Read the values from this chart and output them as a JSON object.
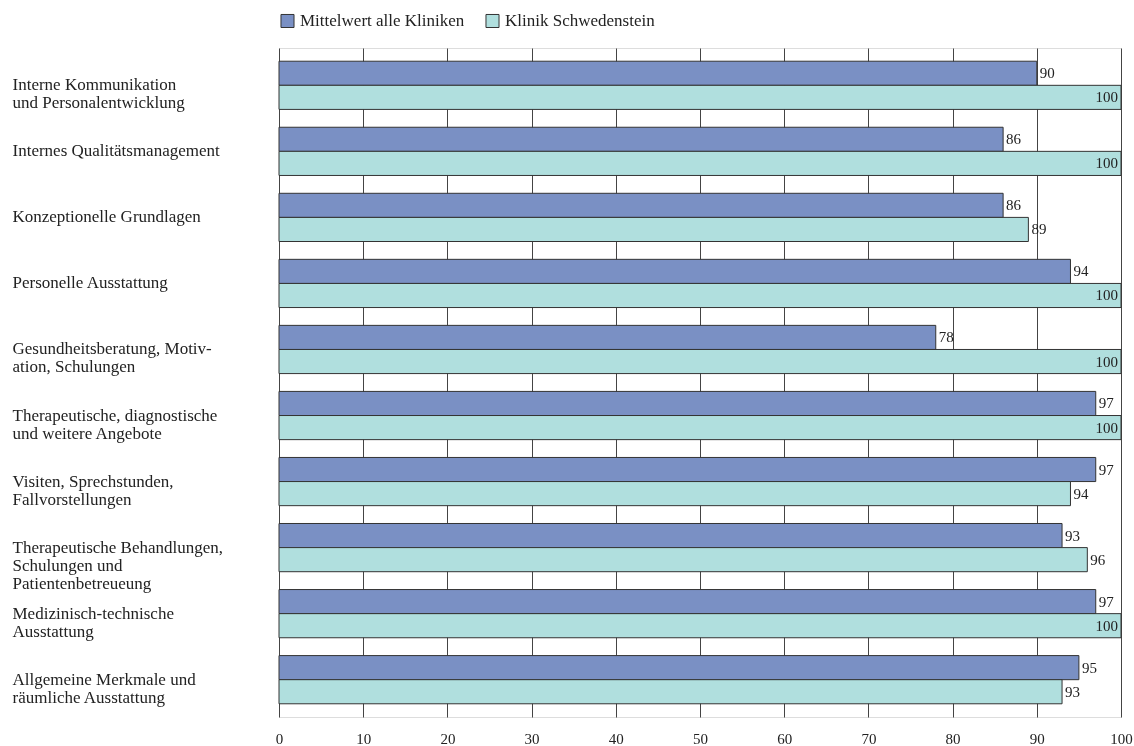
{
  "chart_data": {
    "type": "bar",
    "orientation": "horizontal",
    "categories": [
      "Interne Kommunikation\nund Personalentwicklung",
      "Internes Qualitätsmanagement",
      "Konzeptionelle Grundlagen",
      "Personelle Ausstattung",
      "Gesundheitsberatung, Motiv-\nation, Schulungen",
      "Therapeutische, diagnostische\nund weitere Angebote",
      "Visiten, Sprechstunden,\nFallvorstellungen",
      "Therapeutische Behandlungen,\nSchulungen und\nPatientenbetreueung",
      "Medizinisch-technische\nAusstattung",
      "Allgemeine Merkmale und\nräumliche Ausstattung"
    ],
    "series": [
      {
        "name": "Mittelwert alle Kliniken",
        "color": "#7a90c4",
        "values": [
          90,
          86,
          86,
          94,
          78,
          97,
          97,
          93,
          97,
          95
        ]
      },
      {
        "name": "Klinik Schwedenstein",
        "color": "#b0dfde",
        "values": [
          100,
          100,
          89,
          100,
          100,
          100,
          94,
          96,
          100,
          93
        ]
      }
    ],
    "xlim": [
      0,
      100
    ],
    "xticks": [
      0,
      10,
      20,
      30,
      40,
      50,
      60,
      70,
      80,
      90,
      100
    ],
    "grid": "x",
    "legend": "top",
    "data_labels": true
  }
}
